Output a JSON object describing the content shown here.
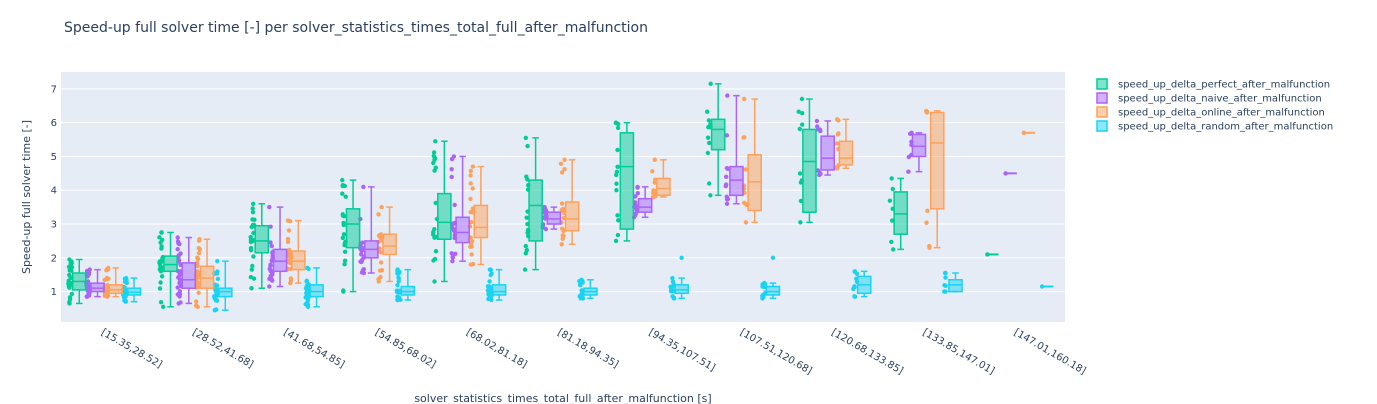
{
  "chart_data": {
    "type": "box",
    "title": "Speed-up full solver time [-] per solver_statistics_times_total_full_after_malfunction",
    "xlabel": "solver_statistics_times_total_full_after_malfunction [s]",
    "ylabel": "Speed-up full solver time [-]",
    "ylim": [
      0.1,
      7.5
    ],
    "yticks": [
      "1",
      "2",
      "3",
      "4",
      "5",
      "6",
      "7"
    ],
    "grid": true,
    "legend_position": "top-right",
    "categories": [
      "[15.35,28.52]",
      "[28.52,41.68]",
      "[41.68,54.85]",
      "[54.85,68.02]",
      "[68.02,81.18]",
      "[81.18,94.35]",
      "[94.35,107.51]",
      "[107.51,120.68]",
      "[120.68,133.85]",
      "[133.85,147.01]",
      "[147.01,160.18]"
    ],
    "series": [
      {
        "name": "speed_up_delta_perfect_after_malfunction",
        "color": "#00cc96",
        "boxes": [
          {
            "min": 0.65,
            "q1": 1.05,
            "median": 1.3,
            "q3": 1.55,
            "max": 1.95
          },
          {
            "min": 0.55,
            "q1": 1.6,
            "median": 1.8,
            "q3": 2.05,
            "max": 2.75
          },
          {
            "min": 1.1,
            "q1": 2.15,
            "median": 2.5,
            "q3": 2.95,
            "max": 3.6
          },
          {
            "min": 1.0,
            "q1": 2.3,
            "median": 3.0,
            "q3": 3.45,
            "max": 4.3
          },
          {
            "min": 1.3,
            "q1": 2.55,
            "median": 3.05,
            "q3": 3.9,
            "max": 5.45
          },
          {
            "min": 1.65,
            "q1": 2.5,
            "median": 3.55,
            "q3": 4.3,
            "max": 5.55
          },
          {
            "min": 2.5,
            "q1": 2.85,
            "median": 4.7,
            "q3": 5.7,
            "max": 6.0
          },
          {
            "min": 3.85,
            "q1": 5.2,
            "median": 5.8,
            "q3": 6.1,
            "max": 7.15
          },
          {
            "min": 3.05,
            "q1": 3.35,
            "median": 4.85,
            "q3": 5.8,
            "max": 6.7
          },
          {
            "min": 2.25,
            "q1": 2.7,
            "median": 3.3,
            "q3": 3.95,
            "max": 4.35
          },
          {
            "min": 2.1,
            "q1": 2.1,
            "median": 2.1,
            "q3": 2.1,
            "max": 2.1
          }
        ]
      },
      {
        "name": "speed_up_delta_naive_after_malfunction",
        "color": "#ab63fa",
        "boxes": [
          {
            "min": 0.85,
            "q1": 1.0,
            "median": 1.1,
            "q3": 1.25,
            "max": 1.65
          },
          {
            "min": 0.65,
            "q1": 1.1,
            "median": 1.35,
            "q3": 1.85,
            "max": 2.6
          },
          {
            "min": 1.15,
            "q1": 1.6,
            "median": 1.9,
            "q3": 2.25,
            "max": 3.5
          },
          {
            "min": 1.55,
            "q1": 2.0,
            "median": 2.25,
            "q3": 2.5,
            "max": 4.1
          },
          {
            "min": 1.9,
            "q1": 2.45,
            "median": 2.75,
            "q3": 3.2,
            "max": 5.0
          },
          {
            "min": 2.85,
            "q1": 3.0,
            "median": 3.15,
            "q3": 3.35,
            "max": 3.5
          },
          {
            "min": 3.2,
            "q1": 3.35,
            "median": 3.5,
            "q3": 3.75,
            "max": 4.1
          },
          {
            "min": 3.6,
            "q1": 3.85,
            "median": 4.3,
            "q3": 4.7,
            "max": 6.8
          },
          {
            "min": 4.45,
            "q1": 4.6,
            "median": 4.95,
            "q3": 5.6,
            "max": 6.05
          },
          {
            "min": 4.55,
            "q1": 5.0,
            "median": 5.3,
            "q3": 5.65,
            "max": 5.7
          },
          {
            "min": 4.5,
            "q1": 4.5,
            "median": 4.5,
            "q3": 4.5,
            "max": 4.5
          }
        ]
      },
      {
        "name": "speed_up_delta_online_after_malfunction",
        "color": "#ffa15a",
        "boxes": [
          {
            "min": 0.85,
            "q1": 0.95,
            "median": 1.05,
            "q3": 1.2,
            "max": 1.7
          },
          {
            "min": 0.55,
            "q1": 1.1,
            "median": 1.4,
            "q3": 1.75,
            "max": 2.55
          },
          {
            "min": 1.25,
            "q1": 1.65,
            "median": 1.9,
            "q3": 2.2,
            "max": 3.1
          },
          {
            "min": 1.3,
            "q1": 2.1,
            "median": 2.35,
            "q3": 2.7,
            "max": 3.5
          },
          {
            "min": 1.8,
            "q1": 2.6,
            "median": 2.9,
            "q3": 3.55,
            "max": 4.7
          },
          {
            "min": 2.4,
            "q1": 2.8,
            "median": 3.15,
            "q3": 3.65,
            "max": 4.9
          },
          {
            "min": 3.8,
            "q1": 3.85,
            "median": 4.05,
            "q3": 4.35,
            "max": 4.9
          },
          {
            "min": 3.05,
            "q1": 3.4,
            "median": 4.25,
            "q3": 5.05,
            "max": 6.7
          },
          {
            "min": 4.65,
            "q1": 4.75,
            "median": 4.95,
            "q3": 5.45,
            "max": 6.1
          },
          {
            "min": 2.3,
            "q1": 3.45,
            "median": 5.4,
            "q3": 6.3,
            "max": 6.35
          },
          {
            "min": 5.7,
            "q1": 5.7,
            "median": 5.7,
            "q3": 5.7,
            "max": 5.7
          }
        ]
      },
      {
        "name": "speed_up_delta_random_after_malfunction",
        "color": "#19d3f3",
        "boxes": [
          {
            "min": 0.7,
            "q1": 0.9,
            "median": 0.98,
            "q3": 1.1,
            "max": 1.4
          },
          {
            "min": 0.45,
            "q1": 0.85,
            "median": 1.0,
            "q3": 1.1,
            "max": 1.9
          },
          {
            "min": 0.55,
            "q1": 0.85,
            "median": 1.0,
            "q3": 1.2,
            "max": 1.7
          },
          {
            "min": 0.75,
            "q1": 0.9,
            "median": 1.0,
            "q3": 1.15,
            "max": 1.65
          },
          {
            "min": 0.75,
            "q1": 0.9,
            "median": 1.0,
            "q3": 1.2,
            "max": 1.65
          },
          {
            "min": 0.8,
            "q1": 0.9,
            "median": 1.0,
            "q3": 1.1,
            "max": 1.35
          },
          {
            "min": 0.8,
            "q1": 0.95,
            "median": 1.05,
            "q3": 1.2,
            "max": 1.4
          },
          {
            "min": 0.8,
            "q1": 0.9,
            "median": 1.0,
            "q3": 1.15,
            "max": 1.25
          },
          {
            "min": 0.85,
            "q1": 0.95,
            "median": 1.2,
            "q3": 1.45,
            "max": 1.6
          },
          {
            "min": 1.0,
            "q1": 1.0,
            "median": 1.2,
            "q3": 1.35,
            "max": 1.55
          },
          {
            "min": 1.15,
            "q1": 1.15,
            "median": 1.15,
            "q3": 1.15,
            "max": 1.15
          }
        ],
        "outliers": [
          {
            "category": 6,
            "value": 2.0
          },
          {
            "category": 7,
            "value": 2.0
          }
        ]
      }
    ]
  }
}
